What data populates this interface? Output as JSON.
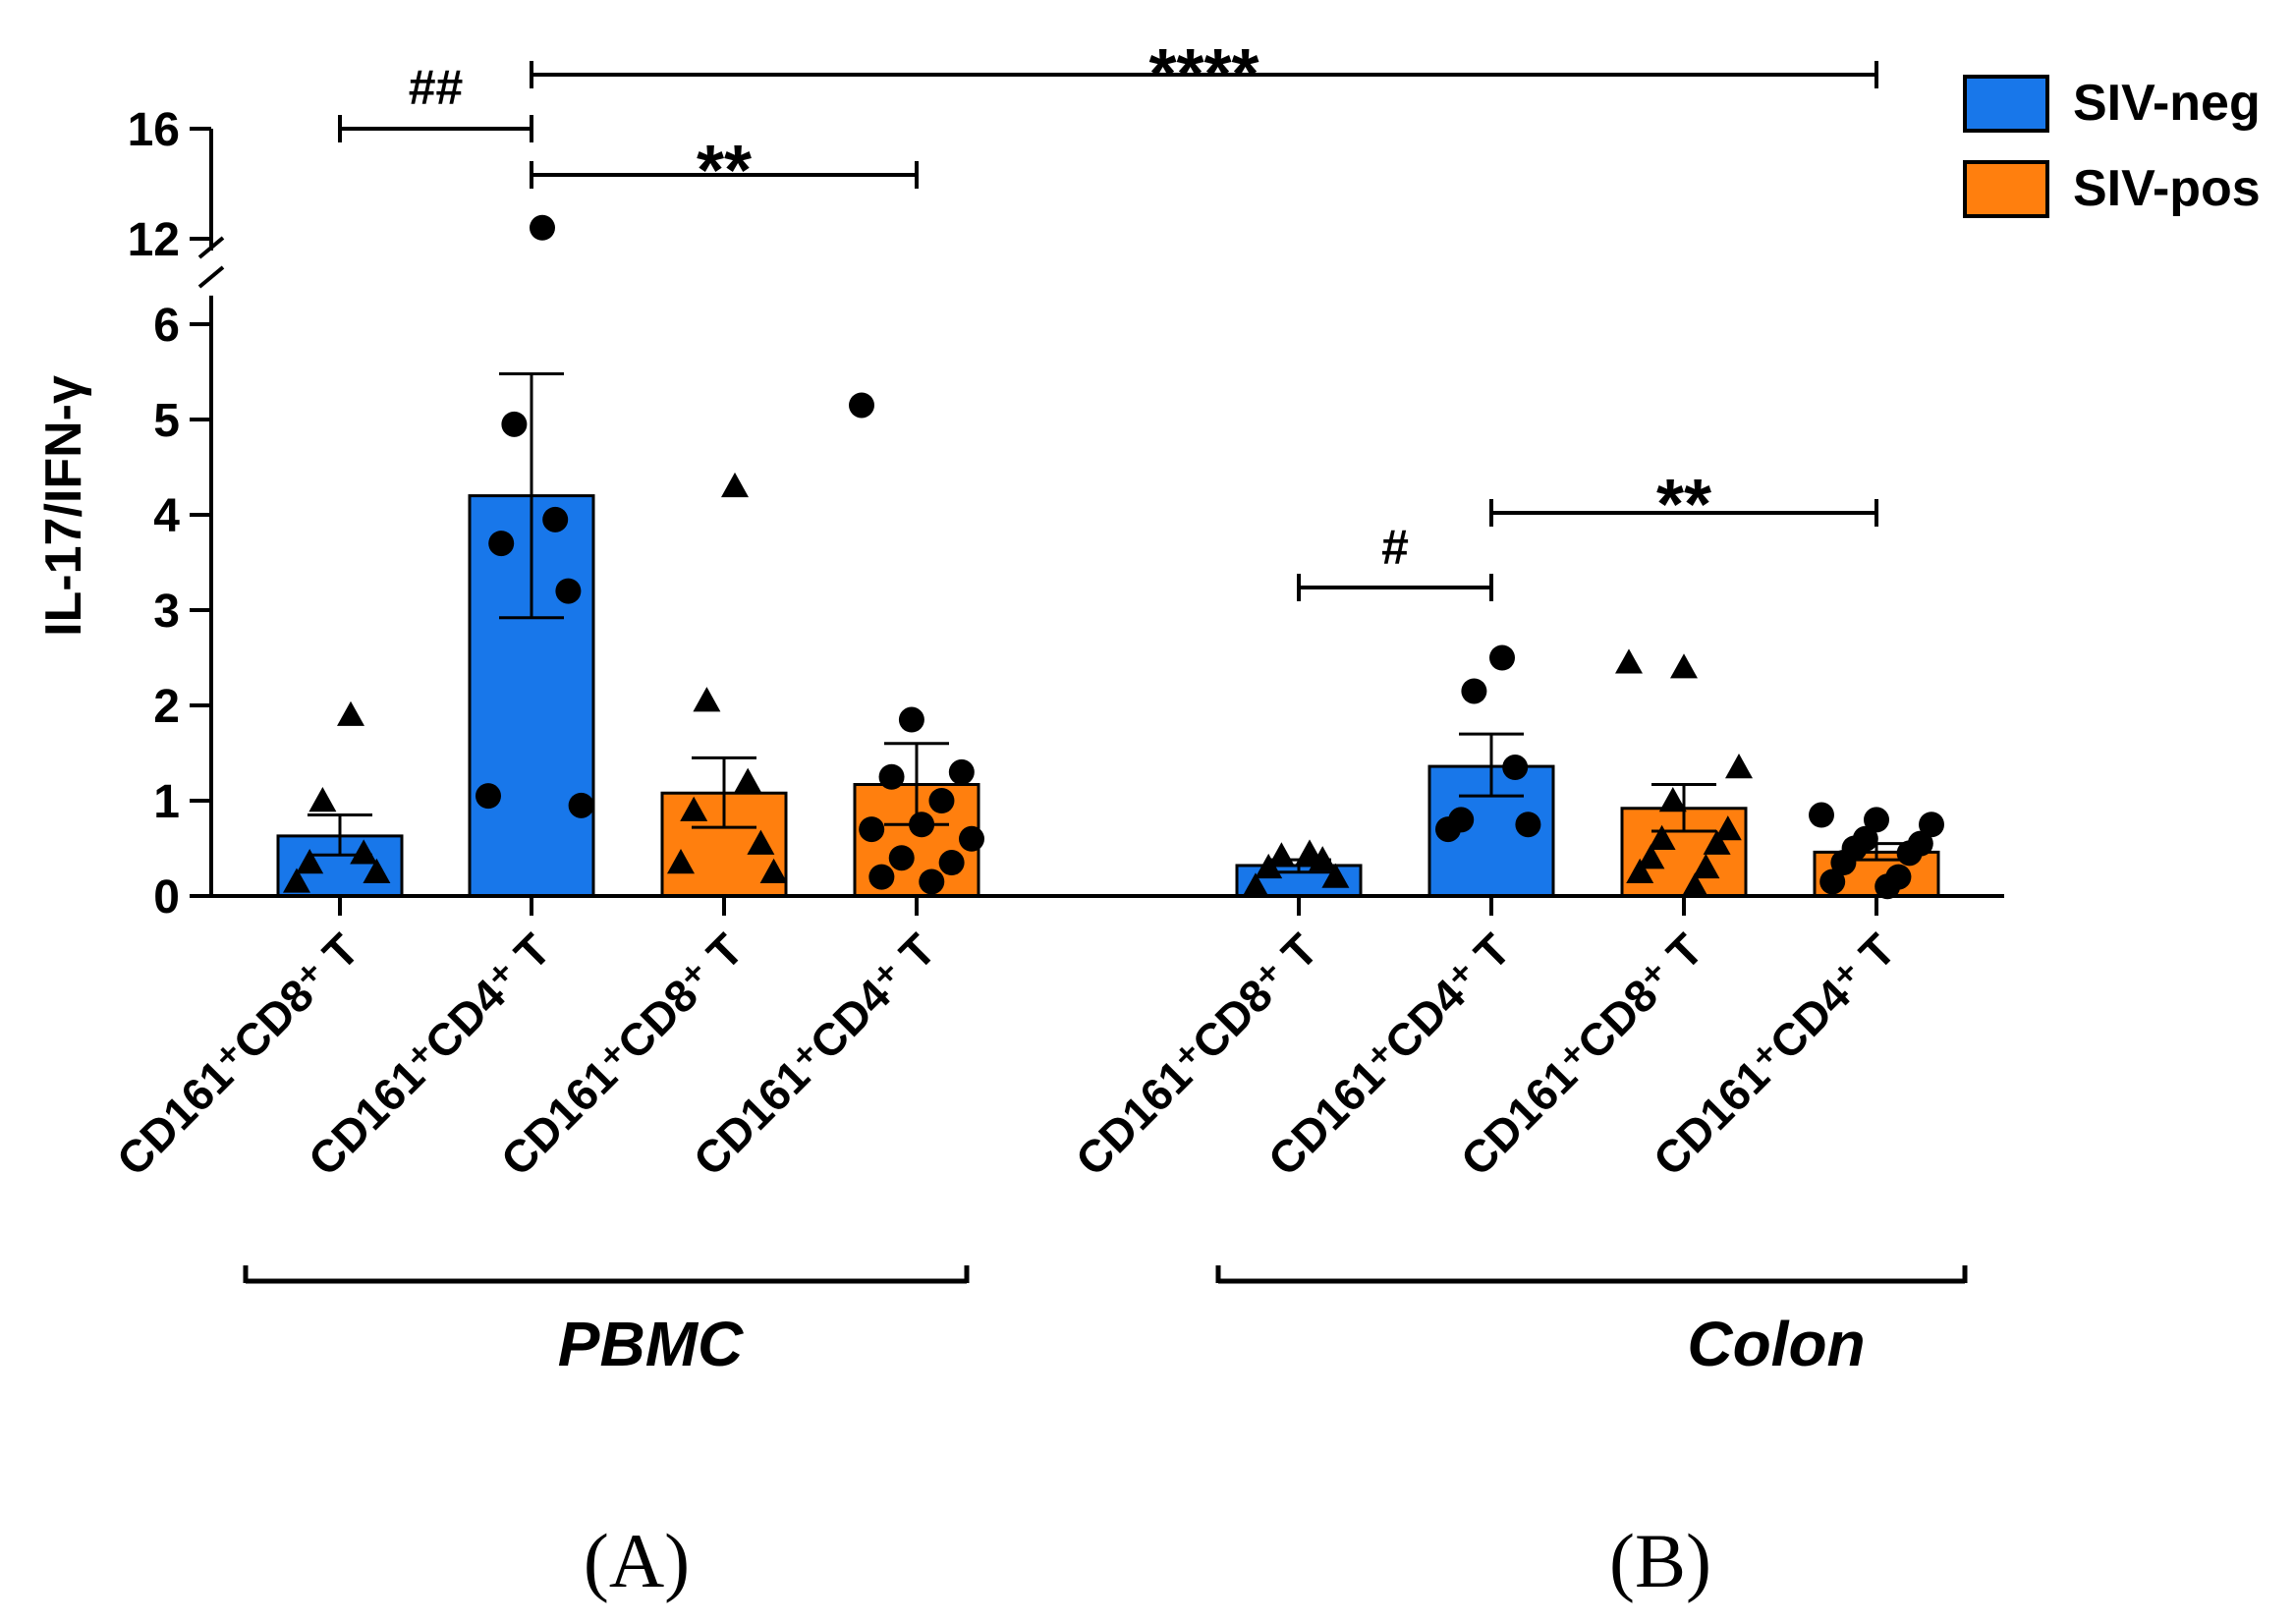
{
  "chart_data": {
    "type": "bar",
    "ylabel": "IL-17/IFN-γ",
    "y_axis": {
      "broken": true,
      "lower_range": [
        0,
        6.5
      ],
      "upper_range": [
        12,
        16
      ],
      "lower_ticks": [
        "0",
        "1",
        "2",
        "3",
        "4",
        "5",
        "6"
      ],
      "upper_ticks": [
        "12",
        "16"
      ]
    },
    "legend": {
      "placement": "top-right",
      "entries": [
        {
          "label": "SIV-neg",
          "color": "#1877EA"
        },
        {
          "label": "SIV-pos",
          "color": "#FF7F0E"
        }
      ]
    },
    "panels": [
      "(A)",
      "(B)"
    ],
    "groups": [
      {
        "label": "PBMC",
        "panel": "(A)",
        "bars": [
          {
            "category": "CD161⁺CD8⁺ T",
            "series": "SIV-neg",
            "marker": "triangle",
            "mean": 0.63,
            "sem_low": 0.43,
            "sem_high": 0.85,
            "points": [
              1.9,
              1.0,
              0.45,
              0.35,
              0.25,
              0.15
            ]
          },
          {
            "category": "CD161⁺CD4⁺ T",
            "series": "SIV-neg",
            "marker": "circle",
            "mean": 4.2,
            "sem_low": 2.92,
            "sem_high": 5.48,
            "points": [
              12.4,
              4.95,
              3.95,
              3.7,
              3.2,
              1.05,
              0.95
            ]
          },
          {
            "category": "CD161⁺CD8⁺ T",
            "series": "SIV-pos",
            "marker": "triangle",
            "mean": 1.08,
            "sem_low": 0.72,
            "sem_high": 1.45,
            "points": [
              4.3,
              2.05,
              1.2,
              0.9,
              0.55,
              0.35,
              0.25
            ]
          },
          {
            "category": "CD161⁺CD4⁺ T",
            "series": "SIV-pos",
            "marker": "circle",
            "mean": 1.17,
            "sem_low": 0.75,
            "sem_high": 1.6,
            "points": [
              5.15,
              1.85,
              1.3,
              1.25,
              1.0,
              0.7,
              0.75,
              0.6,
              0.4,
              0.35,
              0.2,
              0.15
            ]
          }
        ]
      },
      {
        "label": "Colon",
        "panel": "(B)",
        "bars": [
          {
            "category": "CD161⁺CD8⁺ T",
            "series": "SIV-neg",
            "marker": "triangle",
            "mean": 0.32,
            "sem_low": 0.25,
            "sem_high": 0.38,
            "points": [
              0.45,
              0.42,
              0.38,
              0.3,
              0.2,
              0.1
            ]
          },
          {
            "category": "CD161⁺CD4⁺ T",
            "series": "SIV-neg",
            "marker": "circle",
            "mean": 1.36,
            "sem_low": 1.05,
            "sem_high": 1.7,
            "points": [
              2.5,
              2.15,
              1.35,
              0.8,
              0.75,
              0.7
            ]
          },
          {
            "category": "CD161⁺CD8⁺ T",
            "series": "SIV-pos",
            "marker": "triangle",
            "mean": 0.92,
            "sem_low": 0.68,
            "sem_high": 1.17,
            "points": [
              2.45,
              2.4,
              1.35,
              1.0,
              0.7,
              0.6,
              0.55,
              0.4,
              0.3,
              0.25,
              0.1
            ]
          },
          {
            "category": "CD161⁺CD4⁺ T",
            "series": "SIV-pos",
            "marker": "circle",
            "mean": 0.46,
            "sem_low": 0.38,
            "sem_high": 0.55,
            "points": [
              0.85,
              0.8,
              0.75,
              0.6,
              0.55,
              0.5,
              0.45,
              0.35,
              0.2,
              0.15,
              0.1
            ]
          }
        ]
      }
    ],
    "comparisons": [
      {
        "label": "##",
        "from": [
          0,
          0
        ],
        "to": [
          0,
          1
        ]
      },
      {
        "label": "****",
        "from": [
          0,
          1
        ],
        "to": [
          1,
          3
        ]
      },
      {
        "label": "**",
        "from": [
          0,
          1
        ],
        "to": [
          0,
          3
        ]
      },
      {
        "label": "#",
        "from": [
          1,
          0
        ],
        "to": [
          1,
          1
        ]
      },
      {
        "label": "**",
        "from": [
          1,
          1
        ],
        "to": [
          1,
          3
        ]
      }
    ]
  }
}
